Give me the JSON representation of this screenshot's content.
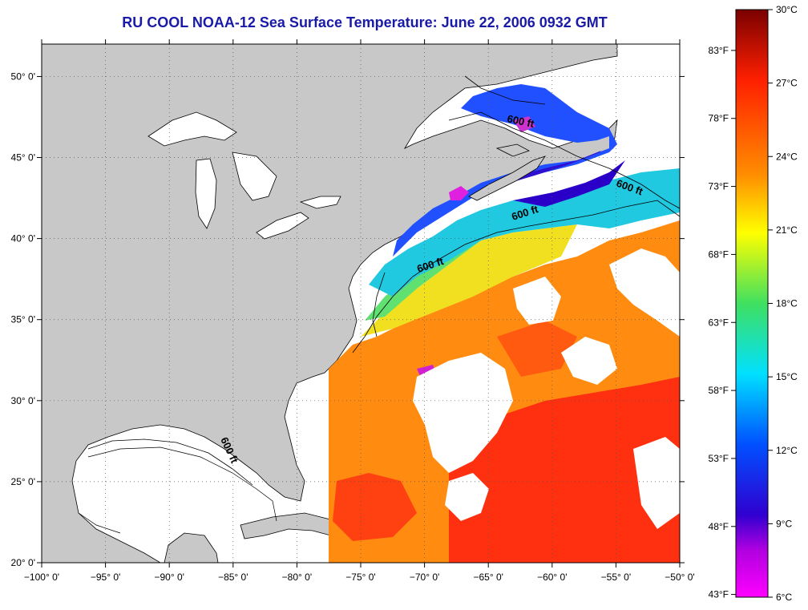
{
  "title": "RU COOL  NOAA-12  Sea Surface Temperature:  June 22, 2006 0932 GMT",
  "map": {
    "lon_range": [
      -100,
      -50
    ],
    "lat_range": [
      20,
      52
    ],
    "lon_ticks": [
      "−100° 0'",
      "−95° 0'",
      "−90° 0'",
      "−85° 0'",
      "−80° 0'",
      "−75° 0'",
      "−70° 0'",
      "−65° 0'",
      "−60° 0'",
      "−55° 0'",
      "−50° 0'"
    ],
    "lat_ticks": [
      "20° 0'",
      "25° 0'",
      "30° 0'",
      "35° 0'",
      "40° 0'",
      "45° 0'",
      "50° 0'"
    ],
    "grid": "dotted",
    "colors": {
      "land": "#c8c8c8",
      "no_data": "#ffffff",
      "coastline": "#000000"
    }
  },
  "contours": [
    {
      "label": "600 ft"
    },
    {
      "label": "600 ft"
    },
    {
      "label": "600 ft"
    },
    {
      "label": "600 ft"
    },
    {
      "label": "600 ft"
    }
  ],
  "colorbar": {
    "celsius": [
      "30°C",
      "27°C",
      "24°C",
      "21°C",
      "18°C",
      "15°C",
      "12°C",
      "9°C",
      "6°C"
    ],
    "fahrenheit": [
      "83°F",
      "78°F",
      "73°F",
      "68°F",
      "63°F",
      "58°F",
      "53°F",
      "48°F",
      "43°F"
    ],
    "stops": [
      "#7a0000",
      "#ff2000",
      "#ff8c00",
      "#ffff00",
      "#40e060",
      "#00e0ff",
      "#0050ff",
      "#3000d0",
      "#ff00ff"
    ]
  }
}
